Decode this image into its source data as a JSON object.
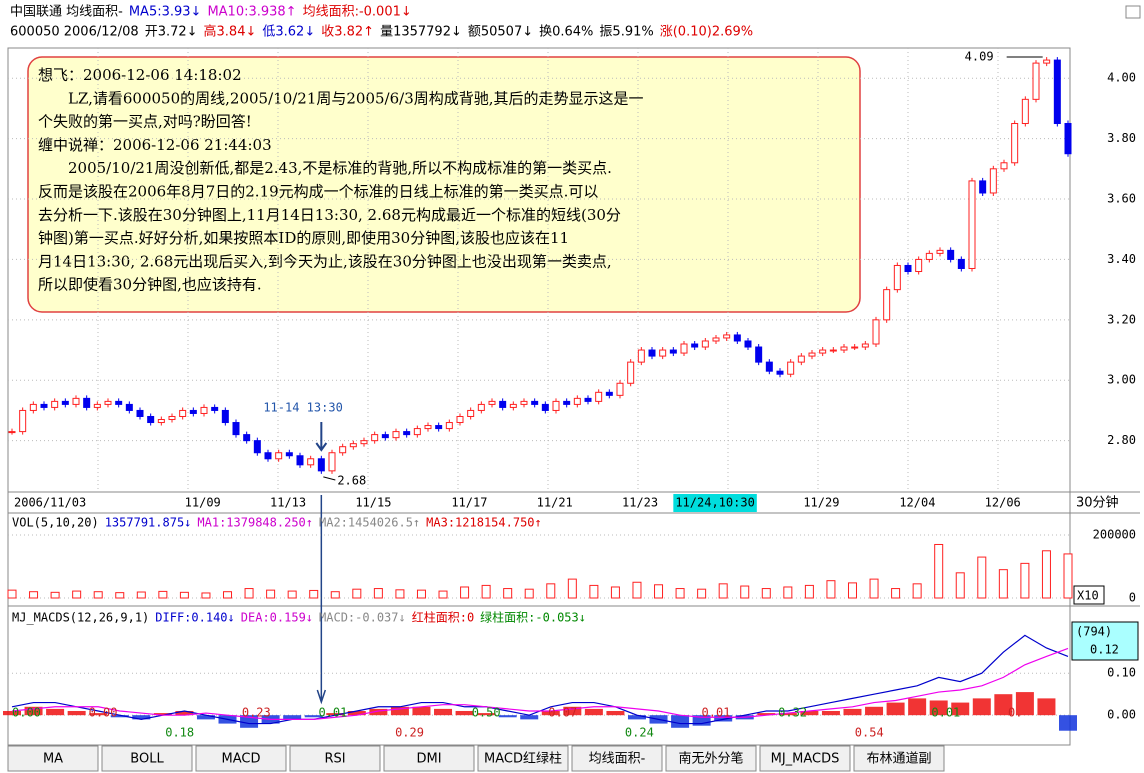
{
  "header": {
    "line1": [
      {
        "text": "中国联通 均线面积-",
        "color": "#000"
      },
      {
        "text": "MA5:3.93↓",
        "color": "#0000cc"
      },
      {
        "text": "MA10:3.938↑",
        "color": "#cc00cc"
      },
      {
        "text": "均线面积:-0.001↓",
        "color": "#dd0000"
      }
    ],
    "line2": [
      {
        "text": "600050 2006/12/08",
        "color": "#000"
      },
      {
        "text": "开3.72↓",
        "color": "#000"
      },
      {
        "text": "高3.84↓",
        "color": "#dd0000"
      },
      {
        "text": "低3.62↓",
        "color": "#0000cc"
      },
      {
        "text": "收3.82↑",
        "color": "#dd0000"
      },
      {
        "text": "量1357792↓",
        "color": "#000"
      },
      {
        "text": "额50507↓",
        "color": "#000"
      },
      {
        "text": "换0.64%",
        "color": "#000"
      },
      {
        "text": "振5.91%",
        "color": "#000"
      },
      {
        "text": "涨(0.10)2.69%",
        "color": "#dd0000"
      }
    ]
  },
  "note": {
    "lines": [
      "想飞：2006-12-06 14:18:02",
      "　　LZ,请看600050的周线,2005/10/21周与2005/6/3周构成背驰,其后的走势显示这是一",
      "个失败的第一买点,对吗?盼回答!",
      "缠中说禅：2006-12-06 21:44:03",
      "　　2005/10/21周没创新低,都是2.43,不是标准的背驰,所以不构成标准的第一类买点.",
      "反而是该股在2006年8月7日的2.19元构成一个标准的日线上标准的第一类买点.可以",
      "去分析一下.该股在30分钟图上,11月14日13:30, 2.68元构成最近一个标准的短线(30分",
      "钟图)第一买点.好好分析,如果按照本ID的原则,即使用30分钟图,该股也应该在11",
      "月14日13:30, 2.68元出现后买入,到今天为止,该股在30分钟图上也没出现第一类卖点,",
      "所以即使看30分钟图,也应该持有."
    ]
  },
  "chart_data": [
    {
      "type": "candlestick",
      "annotations": [
        "4.09",
        "2.68",
        "11-14 13:30"
      ],
      "period_label": "30分钟",
      "categories": [
        "2006/11/03",
        null,
        null,
        null,
        null,
        null,
        null,
        null,
        null,
        null,
        null,
        null,
        null,
        null,
        null,
        null,
        "11/09",
        null,
        null,
        null,
        null,
        null,
        null,
        null,
        "11/13",
        null,
        null,
        null,
        null,
        null,
        null,
        null,
        "11/15",
        null,
        null,
        null,
        null,
        null,
        null,
        null,
        null,
        "11/17",
        null,
        null,
        null,
        null,
        null,
        null,
        null,
        "11/21",
        null,
        null,
        null,
        null,
        null,
        null,
        null,
        "11/23",
        null,
        null,
        null,
        null,
        "11/24,10:30",
        null,
        null,
        null,
        null,
        null,
        null,
        null,
        null,
        null,
        null,
        null,
        "11/29",
        null,
        null,
        null,
        null,
        null,
        null,
        null,
        null,
        "12/04",
        null,
        null,
        null,
        null,
        null,
        null,
        null,
        "12/06",
        null,
        null,
        null,
        null,
        null,
        null,
        null,
        null
      ],
      "closes": [
        2.83,
        2.9,
        2.92,
        2.91,
        2.93,
        2.92,
        2.94,
        2.91,
        2.92,
        2.93,
        2.92,
        2.9,
        2.88,
        2.86,
        2.87,
        2.88,
        2.9,
        2.89,
        2.91,
        2.9,
        2.86,
        2.82,
        2.8,
        2.76,
        2.74,
        2.76,
        2.75,
        2.72,
        2.74,
        2.7,
        2.76,
        2.78,
        2.79,
        2.8,
        2.82,
        2.81,
        2.83,
        2.82,
        2.84,
        2.85,
        2.84,
        2.86,
        2.88,
        2.9,
        2.92,
        2.93,
        2.91,
        2.92,
        2.93,
        2.92,
        2.9,
        2.93,
        2.92,
        2.94,
        2.93,
        2.96,
        2.95,
        2.99,
        3.06,
        3.1,
        3.08,
        3.1,
        3.09,
        3.12,
        3.11,
        3.13,
        3.14,
        3.15,
        3.13,
        3.11,
        3.06,
        3.03,
        3.02,
        3.06,
        3.08,
        3.09,
        3.1,
        3.1,
        3.11,
        3.11,
        3.12,
        3.2,
        3.3,
        3.38,
        3.36,
        3.4,
        3.42,
        3.43,
        3.4,
        3.37,
        3.66,
        3.62,
        3.7,
        3.72,
        3.85,
        3.93,
        4.05,
        4.06,
        3.85,
        3.75
      ],
      "up_color": "#ff2020",
      "down_color": "#0000ee",
      "ylim": [
        2.63,
        4.1
      ],
      "yticks": [
        {
          "value": 2.8,
          "label": "2.80"
        },
        {
          "value": 3.0,
          "label": "3.00"
        },
        {
          "value": 3.2,
          "label": "3.20"
        },
        {
          "value": 3.4,
          "label": "3.40"
        },
        {
          "value": 3.6,
          "label": "3.60"
        },
        {
          "value": 3.8,
          "label": "3.80"
        },
        {
          "value": 4.0,
          "label": "4.00"
        }
      ],
      "grid": true
    },
    {
      "type": "bar",
      "title": [
        {
          "text": "VOL(5,10,20)",
          "color": "#000"
        },
        {
          "text": "1357791.875↓",
          "color": "#0000cc"
        },
        {
          "text": "MA1:1379848.250↑",
          "color": "#cc00cc"
        },
        {
          "text": "MA2:1454026.5↑",
          "color": "#888"
        },
        {
          "text": "MA3:1218154.750↑",
          "color": "#dd0000"
        }
      ],
      "unit_label": "X10",
      "values": [
        25000,
        20000,
        18000,
        22000,
        20000,
        17000,
        19000,
        21000,
        18000,
        16000,
        20000,
        30000,
        25000,
        22000,
        24000,
        20000,
        28000,
        30000,
        26000,
        25000,
        22000,
        35000,
        40000,
        30000,
        28000,
        45000,
        60000,
        40000,
        35000,
        50000,
        42000,
        30000,
        28000,
        45000,
        38000,
        30000,
        35000,
        40000,
        55000,
        48000,
        60000,
        30000,
        45000,
        170000,
        80000,
        130000,
        90000,
        110000,
        150000,
        140000
      ],
      "color": "#ff2020",
      "ylim": [
        0,
        270000
      ],
      "yticks": [
        0,
        200000
      ],
      "grid": true
    },
    {
      "type": "macd",
      "title": [
        {
          "text": "MJ_MACDS(12,26,9,1)",
          "color": "#000"
        },
        {
          "text": "DIFF:0.140↓",
          "color": "#0000cc"
        },
        {
          "text": "DEA:0.159↓",
          "color": "#cc00cc"
        },
        {
          "text": "MACD:-0.037↓",
          "color": "#888"
        },
        {
          "text": "红柱面积:0",
          "color": "#dd0000"
        },
        {
          "text": "绿柱面积:-0.053↓",
          "color": "#008800"
        }
      ],
      "readout": [
        "(794)",
        "0.12"
      ],
      "area_labels": [
        "0.00",
        "0.00",
        "0.18",
        "0.23",
        "0.01",
        "0.29",
        "0.50",
        "0.07",
        "0.24",
        "0.01",
        "0.32",
        "0.54",
        "0.01",
        "0."
      ],
      "series": [
        {
          "name": "DIFF",
          "color": "#0000cc",
          "values": [
            0.02,
            0.03,
            0.03,
            0.02,
            0.01,
            0.0,
            -0.01,
            0.0,
            0.01,
            0.0,
            -0.01,
            -0.02,
            -0.02,
            -0.01,
            -0.01,
            0.0,
            0.01,
            0.02,
            0.02,
            0.03,
            0.03,
            0.02,
            0.02,
            0.01,
            0.0,
            0.02,
            0.03,
            0.03,
            0.02,
            0.0,
            -0.01,
            -0.02,
            -0.02,
            -0.01,
            0.0,
            0.01,
            0.01,
            0.02,
            0.03,
            0.04,
            0.05,
            0.06,
            0.07,
            0.09,
            0.08,
            0.1,
            0.15,
            0.19,
            0.16,
            0.14
          ]
        },
        {
          "name": "DEA",
          "color": "#ee00ee",
          "values": [
            0.01,
            0.015,
            0.02,
            0.02,
            0.02,
            0.01,
            0.005,
            0.0,
            0.0,
            0.005,
            0.0,
            -0.005,
            -0.01,
            -0.01,
            -0.01,
            -0.005,
            0.0,
            0.01,
            0.015,
            0.02,
            0.025,
            0.025,
            0.02,
            0.015,
            0.01,
            0.01,
            0.015,
            0.02,
            0.02,
            0.015,
            0.01,
            0.0,
            -0.005,
            -0.005,
            -0.005,
            0.0,
            0.005,
            0.01,
            0.015,
            0.02,
            0.03,
            0.035,
            0.045,
            0.055,
            0.06,
            0.07,
            0.09,
            0.12,
            0.14,
            0.159
          ]
        }
      ],
      "histogram": [
        0.01,
        0.02,
        0.015,
        0.01,
        0.005,
        -0.005,
        -0.01,
        0.005,
        0.01,
        -0.01,
        -0.02,
        -0.03,
        -0.02,
        -0.01,
        -0.005,
        0.005,
        0.01,
        0.015,
        0.02,
        0.02,
        0.015,
        0.01,
        0.005,
        -0.005,
        -0.01,
        0.01,
        0.02,
        0.015,
        0.01,
        -0.01,
        -0.02,
        -0.03,
        -0.025,
        -0.015,
        -0.01,
        0.005,
        0.005,
        0.01,
        0.01,
        0.015,
        0.02,
        0.03,
        0.04,
        0.035,
        0.03,
        0.04,
        0.05,
        0.055,
        0.04,
        -0.037
      ],
      "pos_color": "#ee1111",
      "neg_color": "#1133dd",
      "ylim": [
        -0.071,
        0.26
      ],
      "yticks": [
        {
          "value": 0,
          "label": "0.00"
        },
        {
          "value": 0.1,
          "label": "0.10"
        }
      ],
      "grid": true
    }
  ],
  "tabs": [
    "MA",
    "BOLL",
    "MACD",
    "RSI",
    "DMI",
    "MACD红绿柱",
    "均线面积-",
    "南无外分笔",
    "MJ_MACDS",
    "布林通道副"
  ]
}
